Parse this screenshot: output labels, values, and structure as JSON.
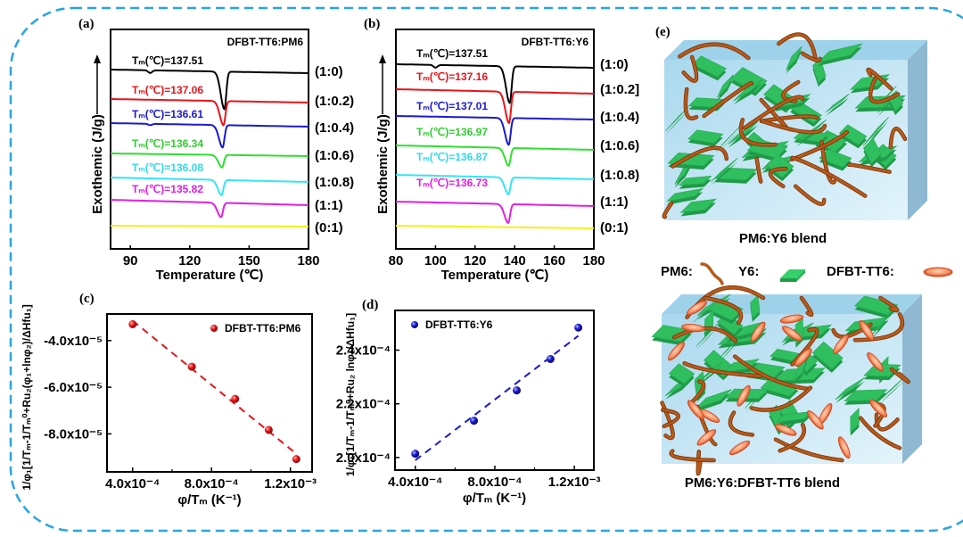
{
  "panels": {
    "a": "(a)",
    "b": "(b)",
    "c": "(c)",
    "d": "(d)",
    "e": "(e)"
  },
  "colors": {
    "frame": "#2aa5e0",
    "curves": [
      "#000000",
      "#e8141a",
      "#1a1ad0",
      "#2ee02e",
      "#33e6f0",
      "#e020e0",
      "#f2f21a"
    ],
    "pm6": "#b85a1a",
    "y6": "#2fbf5f",
    "dfbt": "#f08a5a",
    "box": "#bfe4f2"
  },
  "chart_data": [
    {
      "type": "line",
      "panel": "a",
      "title": "DFBT-TT6:PM6",
      "xlabel": "Temperature (℃)",
      "ylabel": "Exothemic (J/g)",
      "xlim": [
        80,
        180
      ],
      "xticks": [
        "90",
        "120",
        "150",
        "180"
      ],
      "xtick_values": [
        90,
        120,
        150,
        180
      ],
      "grid": false,
      "series": [
        {
          "name": "(1:0)",
          "tm_label": "Tₘ(℃)=137.51",
          "tm": 137.51
        },
        {
          "name": "(1:0.2)",
          "tm_label": "Tₘ(℃)=137.06",
          "tm": 137.06
        },
        {
          "name": "(1:0.4)",
          "tm_label": "Tₘ(℃)=136.61",
          "tm": 136.61
        },
        {
          "name": "(1:0.6)",
          "tm_label": "Tₘ(℃)=136.34",
          "tm": 136.34
        },
        {
          "name": "(1:0.8)",
          "tm_label": "Tₘ(℃)=136.08",
          "tm": 136.08
        },
        {
          "name": "(1:1)",
          "tm_label": "Tₘ(℃)=135.82",
          "tm": 135.82
        },
        {
          "name": "(0:1)",
          "tm_label": "",
          "tm": null
        }
      ]
    },
    {
      "type": "line",
      "panel": "b",
      "title": "DFBT-TT6:Y6",
      "xlabel": "Temperature (℃)",
      "ylabel": "Exothemic (J/g)",
      "xlim": [
        80,
        180
      ],
      "xticks": [
        "80",
        "100",
        "120",
        "140",
        "160",
        "180"
      ],
      "xtick_values": [
        80,
        100,
        120,
        140,
        160,
        180
      ],
      "grid": false,
      "series": [
        {
          "name": "(1:0)",
          "tm_label": "Tₘ(℃)=137.51",
          "tm": 137.51
        },
        {
          "name": "(1:0.2]",
          "tm_label": "Tₘ(℃)=137.16",
          "tm": 137.16
        },
        {
          "name": "(1:0.4)",
          "tm_label": "Tₘ(℃)=137.01",
          "tm": 137.01
        },
        {
          "name": "(1:0.6)",
          "tm_label": "Tₘ(℃)=136.97",
          "tm": 136.97
        },
        {
          "name": "(1:0.8)",
          "tm_label": "Tₘ(℃)=136.87",
          "tm": 136.87
        },
        {
          "name": "(1:1)",
          "tm_label": "Tₘ(℃)=136.73",
          "tm": 136.73
        },
        {
          "name": "(0:1)",
          "tm_label": "",
          "tm": null
        }
      ]
    },
    {
      "type": "scatter",
      "panel": "c",
      "legend": "DFBT-TT6:PM6",
      "legend_position": "top-right",
      "xlabel": "φ/Tₘ (K⁻¹)",
      "ylabel": "1/φ₁[1/Tₘ-1/Tₘ⁰+Ru₂(φ₁+lnφ₂)/ΔHfu₁]",
      "xlim": [
        0.00027,
        0.00131
      ],
      "ylim": [
        -9.63e-05,
        -2.86e-05
      ],
      "xticks": [
        "4.0x10⁻⁴",
        "8.0x10⁻⁴",
        "1.2x10⁻³"
      ],
      "xtick_values": [
        0.0004,
        0.0008,
        0.0012
      ],
      "yticks": [
        "-4.0x10⁻⁵",
        "-6.0x10⁻⁵",
        "-8.0x10⁻⁵"
      ],
      "ytick_values": [
        -4e-05,
        -6e-05,
        -8e-05
      ],
      "x": [
        0.0004,
        0.0007,
        0.00092,
        0.00109,
        0.00123
      ],
      "y": [
        -3.3e-05,
        -5.12e-05,
        -6.5e-05,
        -7.83e-05,
        -9.08e-05
      ],
      "fit": "linear dashed",
      "color": "#e8141a"
    },
    {
      "type": "scatter",
      "panel": "d",
      "legend": "DFBT-TT6:Y6",
      "legend_position": "top-left",
      "xlabel": "φ/Tₘ (K⁻¹)",
      "ylabel": "1/φ₁[1/Tₘ-1/Tₘ⁰+Ru₂ lnφ₂/ΔHfu₁]",
      "xlim": [
        0.000298,
        0.001298
      ],
      "ylim": [
        0.0001953,
        0.0002548
      ],
      "xticks": [
        "4.0x10⁻⁴",
        "8.0x10⁻⁴",
        "1.2x10⁻³"
      ],
      "xtick_values": [
        0.0004,
        0.0008,
        0.0012
      ],
      "yticks": [
        "2.4x10⁻⁴",
        "2.2x10⁻⁴",
        "2.0x10⁻⁴"
      ],
      "ytick_values": [
        0.00024,
        0.00022,
        0.0002
      ],
      "x": [
        0.0004,
        0.000695,
        0.00091,
        0.00108,
        0.00122
      ],
      "y": [
        0.0002014,
        0.0002137,
        0.000225,
        0.0002367,
        0.0002484
      ],
      "fit": "linear dashed",
      "color": "#1a1ad0"
    }
  ],
  "illustration": {
    "top_caption": "PM6:Y6 blend",
    "bottom_caption": "PM6:Y6:DFBT-TT6 blend",
    "legend": [
      {
        "label": "PM6:",
        "icon": "polymer-chain-icon"
      },
      {
        "label": "Y6:",
        "icon": "y6-slab-icon"
      },
      {
        "label": "DFBT-TT6:",
        "icon": "dfbt-ellipsoid-icon"
      }
    ]
  }
}
